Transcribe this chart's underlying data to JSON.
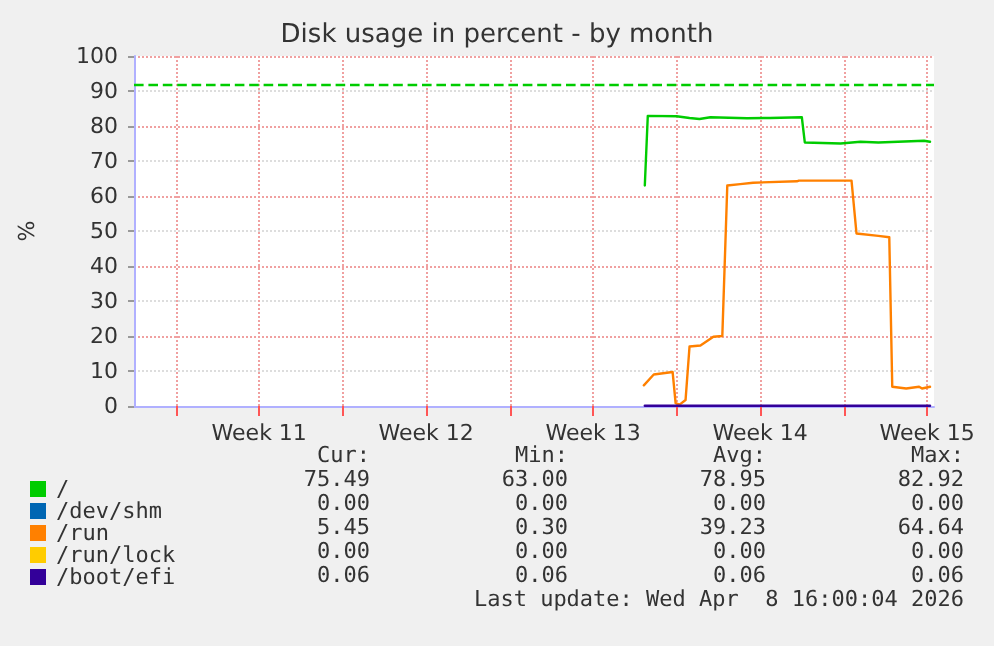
{
  "chart_data": {
    "type": "line",
    "title": "Disk usage in percent - by month",
    "ylabel": "%",
    "xlim": [
      "2026-03-07T06:00",
      "2026-04-09T19:00"
    ],
    "xticks": [
      {
        "value": "2026-03-09T00:00",
        "label": null
      },
      {
        "value": "2026-03-12T12:00",
        "label": "Week 11"
      },
      {
        "value": "2026-03-16T00:00",
        "label": null
      },
      {
        "value": "2026-03-19T12:00",
        "label": "Week 12"
      },
      {
        "value": "2026-03-23T00:00",
        "label": null
      },
      {
        "value": "2026-03-26T12:00",
        "label": "Week 13"
      },
      {
        "value": "2026-03-30T00:00",
        "label": null
      },
      {
        "value": "2026-04-02T12:00",
        "label": "Week 14"
      },
      {
        "value": "2026-04-06T00:00",
        "label": null
      },
      {
        "value": "2026-04-09T12:00",
        "label": "Week 15"
      }
    ],
    "ylim": [
      0,
      100
    ],
    "yticks": [
      0,
      10,
      20,
      30,
      40,
      50,
      60,
      70,
      80,
      90,
      100
    ],
    "grid": true,
    "legend": "bottom left",
    "marker": "none",
    "line_style": "solid",
    "series": [
      {
        "name": "/",
        "color": "#00cc00",
        "x": [
          "2026-03-28T16:00",
          "2026-03-28T19:00",
          "2026-03-30T00:00",
          "2026-03-30T13:00",
          "2026-03-30T23:00",
          "2026-03-31T10:00",
          "2026-04-01T23:00",
          "2026-04-02T22:00",
          "2026-04-04T06:00",
          "2026-04-04T09:00",
          "2026-04-05T21:00",
          "2026-04-06T17:00",
          "2026-04-07T11:00",
          "2026-04-09T09:00",
          "2026-04-09T15:00"
        ],
        "values": [
          63,
          82.9,
          82.8,
          82.3,
          82.0,
          82.5,
          82.2,
          82.3,
          82.5,
          75.3,
          75.0,
          75.5,
          75.3,
          75.8,
          75.5
        ]
      },
      {
        "name": "/dev/shm",
        "color": "#0066b3"
      },
      {
        "name": "/run",
        "color": "#ff8000",
        "x": [
          "2026-03-28T15:00",
          "2026-03-29T01:00",
          "2026-03-29T20:00",
          "2026-03-29T23:00",
          "2026-03-30T03:00",
          "2026-03-30T09:00",
          "2026-03-30T13:00",
          "2026-03-31T00:00",
          "2026-03-31T13:00",
          "2026-03-31T22:00",
          "2026-04-01T03:00",
          "2026-04-01T16:00",
          "2026-04-02T05:00",
          "2026-04-04T01:00",
          "2026-04-04T03:00",
          "2026-04-06T08:00",
          "2026-04-06T13:00",
          "2026-04-07T11:00",
          "2026-04-07T22:00",
          "2026-04-08T01:00",
          "2026-04-08T15:00",
          "2026-04-09T04:00",
          "2026-04-09T07:00",
          "2026-04-09T15:00"
        ],
        "values": [
          5.9,
          9.0,
          9.7,
          0.8,
          0.4,
          1.7,
          17.0,
          17.3,
          19.8,
          20.0,
          63.0,
          63.4,
          63.8,
          64.2,
          64.4,
          64.4,
          49.3,
          48.6,
          48.2,
          5.5,
          5.0,
          5.5,
          5.0,
          5.5
        ]
      },
      {
        "name": "/run/lock",
        "color": "#ffcc00"
      },
      {
        "name": "/boot/efi",
        "color": "#330099",
        "x": [
          "2026-03-28T16:00",
          "2026-04-09T15:00"
        ],
        "values": [
          0.06,
          0.06
        ]
      }
    ],
    "ref_lines": [
      {
        "axis": "y",
        "value": 92,
        "color": "#00cc00",
        "line_style": "dashed"
      }
    ],
    "annotations": [
      "Cur:",
      "Min:",
      "Avg:",
      "Max:",
      "75.49",
      "63.00",
      "78.95",
      "82.92",
      "0.00",
      "0.00",
      "0.00",
      "0.00",
      "5.45",
      "0.30",
      "39.23",
      "64.64",
      "0.00",
      "0.00",
      "0.00",
      "0.00",
      "0.06",
      "0.06",
      "0.06",
      "0.06",
      "Last update: Wed Apr  8 16:00:04 2026"
    ]
  }
}
